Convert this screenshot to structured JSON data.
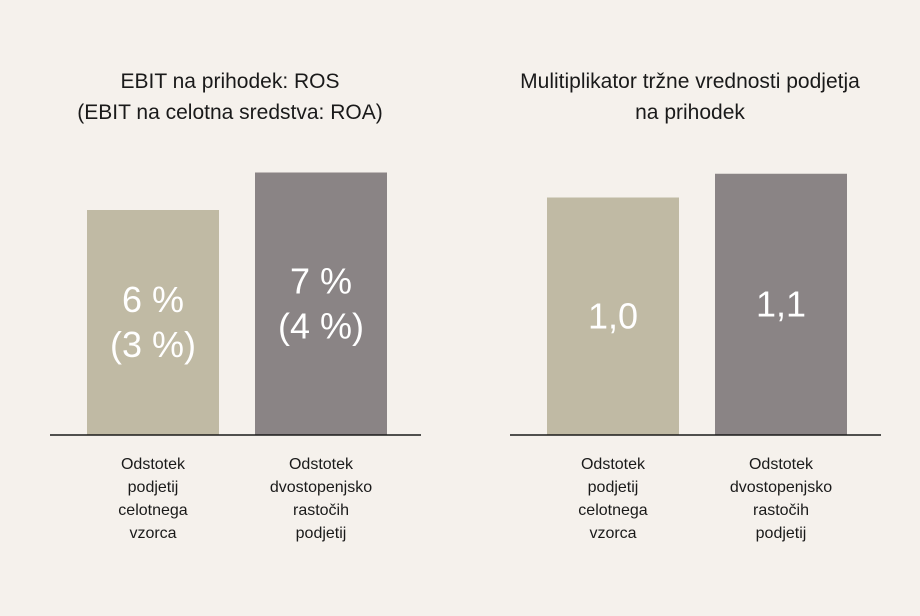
{
  "colors": {
    "background": "#f5f1ec",
    "sample": "#c0baa4",
    "growth": "#8a8485",
    "axis": "#1a1a1a"
  },
  "chart_data": [
    {
      "type": "bar",
      "title_lines": [
        "EBIT na prihodek: ROS",
        "(EBIT na celotna sredstva: ROA)"
      ],
      "categories": [
        [
          "Odstotek",
          "podjetij",
          "celotnega",
          "vzorca"
        ],
        [
          "Odstotek",
          "dvostopenjsko",
          "rastočih",
          "podjetij"
        ]
      ],
      "series": [
        {
          "values": [
            6,
            7
          ],
          "secondary_values": [
            3,
            4
          ],
          "unit": "%"
        }
      ],
      "bar_labels": [
        [
          "6 %",
          "(3 %)"
        ],
        [
          "7 %",
          "(4 %)"
        ]
      ],
      "colors": [
        "#c0baa4",
        "#8a8485"
      ],
      "ylim": [
        0,
        7.6
      ],
      "xlabel": "",
      "ylabel": "",
      "grid": false,
      "legend": "none"
    },
    {
      "type": "bar",
      "title_lines": [
        "Mulitiplikator tržne vrednosti podjetja",
        "na prihodek"
      ],
      "categories": [
        [
          "Odstotek",
          "podjetij",
          "celotnega",
          "vzorca"
        ],
        [
          "Odstotek",
          "dvostopenjsko",
          "rastočih",
          "podjetij"
        ]
      ],
      "series": [
        {
          "values": [
            1.0,
            1.1
          ]
        }
      ],
      "bar_labels": [
        [
          "1,0"
        ],
        [
          "1,1"
        ]
      ],
      "colors": [
        "#c0baa4",
        "#8a8485"
      ],
      "ylim": [
        0,
        1.2
      ],
      "xlabel": "",
      "ylabel": "",
      "grid": false,
      "legend": "none"
    }
  ]
}
